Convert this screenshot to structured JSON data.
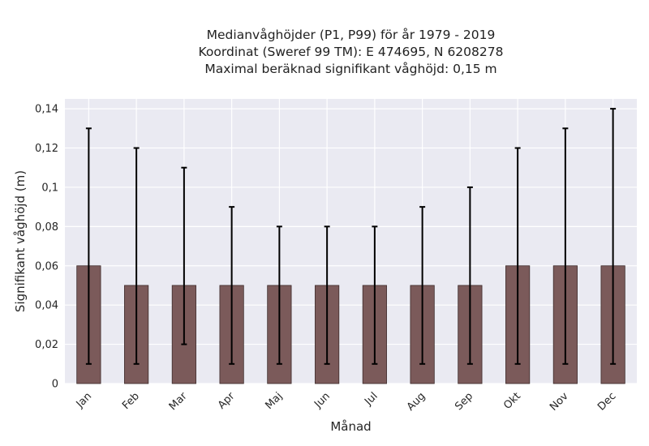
{
  "chart_data": {
    "type": "bar",
    "title_lines": [
      "Medianvåghöjder (P1, P99) för år 1979 - 2019",
      "Koordinat (Sweref 99 TM): E 474695, N 6208278",
      "Maximal beräknad signifikant våghöjd: 0,15 m"
    ],
    "xlabel": "Månad",
    "ylabel": "Signifikant våghöjd (m)",
    "categories": [
      "Jan",
      "Feb",
      "Mar",
      "Apr",
      "Maj",
      "Jun",
      "Jul",
      "Aug",
      "Sep",
      "Okt",
      "Nov",
      "Dec"
    ],
    "values": [
      0.06,
      0.05,
      0.05,
      0.05,
      0.05,
      0.05,
      0.05,
      0.05,
      0.05,
      0.06,
      0.06,
      0.06
    ],
    "error_low": [
      0.01,
      0.01,
      0.02,
      0.01,
      0.01,
      0.01,
      0.01,
      0.01,
      0.01,
      0.01,
      0.01,
      0.01
    ],
    "error_high": [
      0.13,
      0.12,
      0.11,
      0.09,
      0.08,
      0.08,
      0.08,
      0.09,
      0.1,
      0.12,
      0.13,
      0.14
    ],
    "ylim": [
      0,
      0.145
    ],
    "yticks": [
      0,
      0.02,
      0.04,
      0.06,
      0.08,
      0.1,
      0.12,
      0.14
    ],
    "ytick_labels": [
      "0",
      "0,02",
      "0,04",
      "0,06",
      "0,08",
      "0,1",
      "0,12",
      "0,14"
    ],
    "grid": true,
    "colors": {
      "bar": "#7b5a5a",
      "bar_edge": "#3d2b2b",
      "error": "#000000",
      "plot_bg": "#eaeaf2",
      "grid": "#ffffff"
    }
  }
}
